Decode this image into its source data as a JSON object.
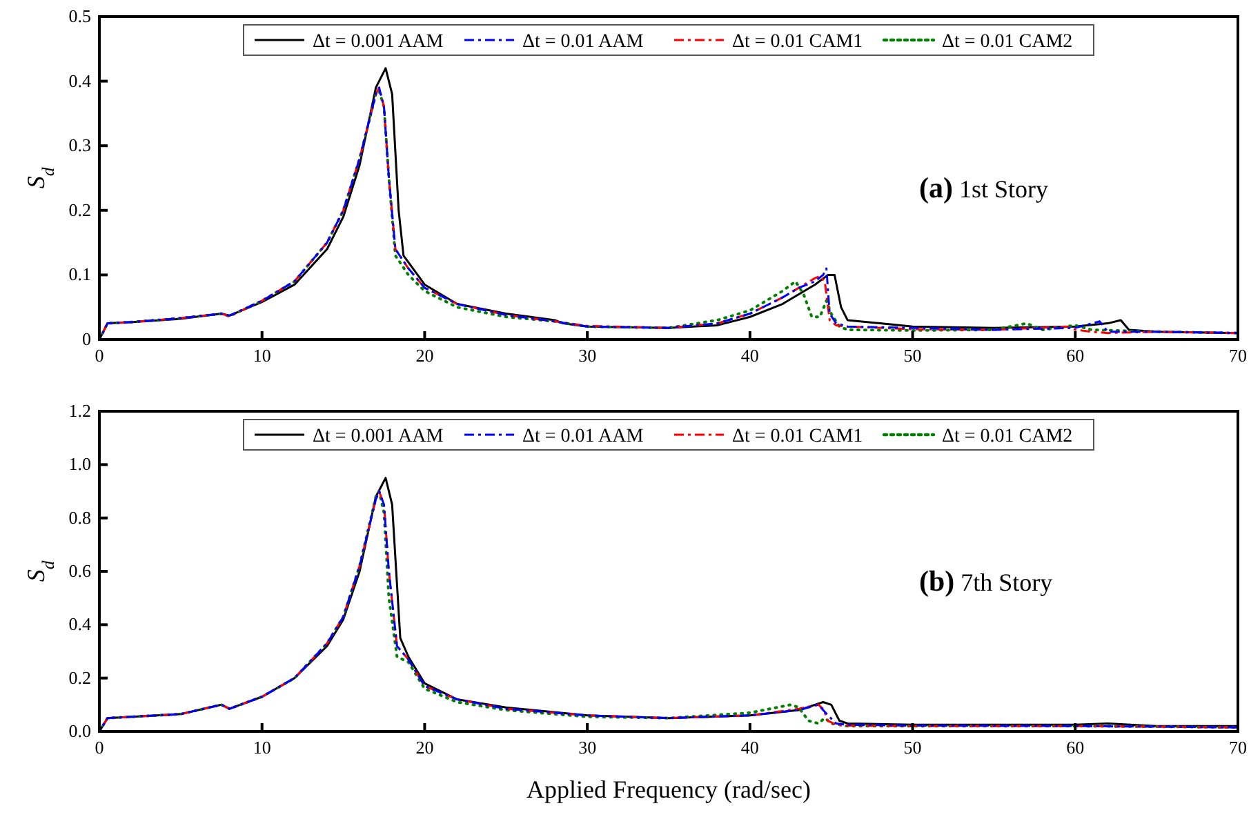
{
  "chart_data": [
    {
      "type": "line",
      "xlim": [
        0,
        70
      ],
      "xticks": [
        0,
        10,
        20,
        30,
        40,
        50,
        60,
        70
      ],
      "ylim": [
        0,
        0.5
      ],
      "yticks": [
        0,
        0.1,
        0.2,
        0.3,
        0.4,
        0.5
      ],
      "ylabel": "S$_{d}$",
      "legend": "top",
      "grid": false,
      "annotations": [
        "(a) 1st Story"
      ],
      "series": [
        {
          "name": "Δt = 0.001 AAM",
          "color": "#000000",
          "line_style": "solid",
          "x": [
            0,
            0.5,
            2,
            5,
            7.5,
            8,
            10,
            12,
            14,
            15,
            16,
            17,
            17.2,
            17.6,
            18,
            18.4,
            18.7,
            20,
            21,
            22,
            25,
            28,
            28.5,
            30,
            35,
            38,
            40,
            42,
            43,
            44,
            44.8,
            45.2,
            45.6,
            46,
            48,
            50,
            55,
            60,
            62,
            62.8,
            63.3,
            65,
            70
          ],
          "values": [
            0,
            0.025,
            0.027,
            0.032,
            0.04,
            0.037,
            0.058,
            0.085,
            0.14,
            0.19,
            0.27,
            0.39,
            0.4,
            0.42,
            0.38,
            0.2,
            0.13,
            0.085,
            0.07,
            0.055,
            0.04,
            0.03,
            0.025,
            0.02,
            0.018,
            0.022,
            0.035,
            0.055,
            0.07,
            0.085,
            0.1,
            0.1,
            0.05,
            0.03,
            0.025,
            0.02,
            0.018,
            0.02,
            0.025,
            0.03,
            0.015,
            0.012,
            0.01
          ]
        },
        {
          "name": "Δt = 0.01 AAM",
          "color": "#0000ff",
          "line_style": "dashed",
          "x": [
            0,
            0.5,
            2,
            5,
            7.5,
            8,
            10,
            12,
            14,
            15,
            16,
            16.5,
            17,
            17.2,
            17.5,
            17.8,
            18.2,
            19,
            20,
            22,
            25,
            28,
            30,
            35,
            38,
            40,
            42,
            43,
            44,
            44.5,
            44.7,
            44.9,
            45.3,
            46,
            50,
            55,
            60,
            61.5,
            62,
            65,
            70
          ],
          "values": [
            0,
            0.025,
            0.027,
            0.033,
            0.04,
            0.037,
            0.06,
            0.09,
            0.15,
            0.2,
            0.28,
            0.33,
            0.38,
            0.39,
            0.36,
            0.25,
            0.14,
            0.11,
            0.08,
            0.055,
            0.038,
            0.028,
            0.02,
            0.018,
            0.025,
            0.04,
            0.065,
            0.08,
            0.09,
            0.1,
            0.11,
            0.04,
            0.025,
            0.02,
            0.018,
            0.015,
            0.018,
            0.028,
            0.012,
            0.012,
            0.01
          ]
        },
        {
          "name": "Δt = 0.01 CAM1",
          "color": "#ff0000",
          "line_style": "dashed",
          "x": [
            0,
            0.5,
            2,
            5,
            7.5,
            8,
            10,
            12,
            14,
            15,
            16,
            16.5,
            17,
            17.2,
            17.5,
            17.8,
            18.2,
            19,
            20,
            22,
            25,
            28,
            30,
            35,
            38,
            40,
            42,
            43,
            44,
            44.3,
            44.6,
            44.9,
            45.3,
            46,
            50,
            55,
            59.5,
            60,
            61,
            62,
            65,
            70
          ],
          "values": [
            0,
            0.025,
            0.027,
            0.033,
            0.04,
            0.036,
            0.06,
            0.09,
            0.15,
            0.2,
            0.28,
            0.33,
            0.38,
            0.39,
            0.36,
            0.25,
            0.14,
            0.11,
            0.08,
            0.055,
            0.038,
            0.028,
            0.021,
            0.018,
            0.025,
            0.04,
            0.065,
            0.08,
            0.095,
            0.098,
            0.09,
            0.03,
            0.022,
            0.02,
            0.016,
            0.015,
            0.02,
            0.015,
            0.012,
            0.01,
            0.012,
            0.01
          ]
        },
        {
          "name": "Δt = 0.01 CAM2",
          "color": "#008000",
          "line_style": "dotted",
          "x": [
            0,
            0.5,
            2,
            5,
            7.5,
            8,
            10,
            12,
            14,
            15,
            16,
            16.5,
            17,
            17.2,
            17.5,
            17.8,
            18.2,
            19,
            20,
            22,
            25,
            28,
            30,
            35,
            38,
            40,
            42,
            42.8,
            43.3,
            43.8,
            44.3,
            44.7,
            45,
            45.5,
            46,
            50,
            55,
            57,
            58,
            60,
            61,
            65,
            70
          ],
          "values": [
            0,
            0.025,
            0.027,
            0.033,
            0.04,
            0.036,
            0.06,
            0.09,
            0.15,
            0.2,
            0.28,
            0.33,
            0.38,
            0.385,
            0.36,
            0.25,
            0.13,
            0.1,
            0.075,
            0.05,
            0.035,
            0.028,
            0.02,
            0.018,
            0.03,
            0.045,
            0.075,
            0.09,
            0.07,
            0.035,
            0.035,
            0.06,
            0.04,
            0.02,
            0.015,
            0.014,
            0.015,
            0.025,
            0.015,
            0.022,
            0.015,
            0.012,
            0.01
          ]
        }
      ]
    },
    {
      "type": "line",
      "xlim": [
        0,
        70
      ],
      "xticks": [
        0,
        10,
        20,
        30,
        40,
        50,
        60,
        70
      ],
      "ylim": [
        0,
        1.2
      ],
      "yticks": [
        {
          "value": 0,
          "label": "0.0"
        },
        {
          "value": 0.2,
          "label": "0.2"
        },
        {
          "value": 0.4,
          "label": "0.4"
        },
        {
          "value": 0.6,
          "label": "0.6"
        },
        {
          "value": 0.8,
          "label": "0.8"
        },
        {
          "value": 1,
          "label": "1.0"
        },
        {
          "value": 1.2,
          "label": "1.2"
        }
      ],
      "ylabel": "S$_{d}$",
      "xlabel": "Applied Frequency  (rad/sec)",
      "legend": "top",
      "grid": false,
      "annotations": [
        "(b) 7th Story"
      ],
      "series": [
        {
          "name": "Δt = 0.001 AAM",
          "color": "#000000",
          "line_style": "solid",
          "x": [
            0,
            0.5,
            2,
            5,
            7.5,
            8,
            10,
            12,
            14,
            15,
            16,
            17,
            17.6,
            18,
            18.5,
            19,
            20,
            22,
            25,
            30,
            35,
            40,
            43,
            44.5,
            45,
            45.5,
            46,
            50,
            60,
            62,
            65,
            70
          ],
          "values": [
            0,
            0.05,
            0.055,
            0.065,
            0.1,
            0.085,
            0.13,
            0.2,
            0.32,
            0.42,
            0.6,
            0.88,
            0.95,
            0.85,
            0.35,
            0.28,
            0.18,
            0.12,
            0.09,
            0.06,
            0.05,
            0.06,
            0.08,
            0.11,
            0.1,
            0.04,
            0.03,
            0.025,
            0.025,
            0.03,
            0.02,
            0.02
          ]
        },
        {
          "name": "Δt = 0.01 AAM",
          "color": "#0000ff",
          "line_style": "dashed",
          "x": [
            0,
            0.5,
            2,
            5,
            7.5,
            8,
            10,
            12,
            14,
            15,
            16,
            17,
            17.2,
            17.5,
            17.8,
            18.3,
            19,
            20,
            22,
            25,
            30,
            35,
            40,
            43,
            44.2,
            44.5,
            44.8,
            45.3,
            46,
            50,
            60,
            65,
            70
          ],
          "values": [
            0,
            0.05,
            0.055,
            0.065,
            0.1,
            0.085,
            0.13,
            0.2,
            0.33,
            0.43,
            0.62,
            0.87,
            0.9,
            0.85,
            0.6,
            0.32,
            0.27,
            0.17,
            0.12,
            0.085,
            0.06,
            0.05,
            0.06,
            0.08,
            0.1,
            0.08,
            0.06,
            0.03,
            0.025,
            0.022,
            0.02,
            0.018,
            0.015
          ]
        },
        {
          "name": "Δt = 0.01 CAM1",
          "color": "#ff0000",
          "line_style": "dashed",
          "x": [
            0,
            0.5,
            2,
            5,
            7.5,
            8,
            10,
            12,
            14,
            15,
            16,
            17,
            17.2,
            17.5,
            17.8,
            18.3,
            19,
            20,
            22,
            25,
            30,
            35,
            40,
            43,
            44.2,
            44.5,
            44.8,
            45.3,
            46,
            50,
            60,
            65,
            70
          ],
          "values": [
            0,
            0.05,
            0.055,
            0.065,
            0.1,
            0.085,
            0.13,
            0.2,
            0.33,
            0.43,
            0.62,
            0.87,
            0.9,
            0.85,
            0.6,
            0.32,
            0.27,
            0.17,
            0.12,
            0.085,
            0.06,
            0.05,
            0.06,
            0.085,
            0.1,
            0.085,
            0.04,
            0.025,
            0.022,
            0.02,
            0.02,
            0.018,
            0.015
          ]
        },
        {
          "name": "Δt = 0.01 CAM2",
          "color": "#008000",
          "line_style": "dotted",
          "x": [
            0,
            0.5,
            2,
            5,
            7.5,
            8,
            10,
            12,
            14,
            15,
            16,
            17,
            17.2,
            17.5,
            17.8,
            18.3,
            19,
            20,
            22,
            25,
            30,
            35,
            40,
            42.5,
            43,
            43.6,
            44.2,
            44.6,
            45,
            46,
            50,
            60,
            65,
            70
          ],
          "values": [
            0,
            0.05,
            0.055,
            0.065,
            0.1,
            0.085,
            0.13,
            0.2,
            0.33,
            0.43,
            0.62,
            0.88,
            0.9,
            0.82,
            0.5,
            0.28,
            0.26,
            0.16,
            0.11,
            0.08,
            0.055,
            0.05,
            0.07,
            0.1,
            0.09,
            0.04,
            0.03,
            0.05,
            0.03,
            0.02,
            0.02,
            0.02,
            0.018,
            0.015
          ]
        }
      ]
    }
  ]
}
